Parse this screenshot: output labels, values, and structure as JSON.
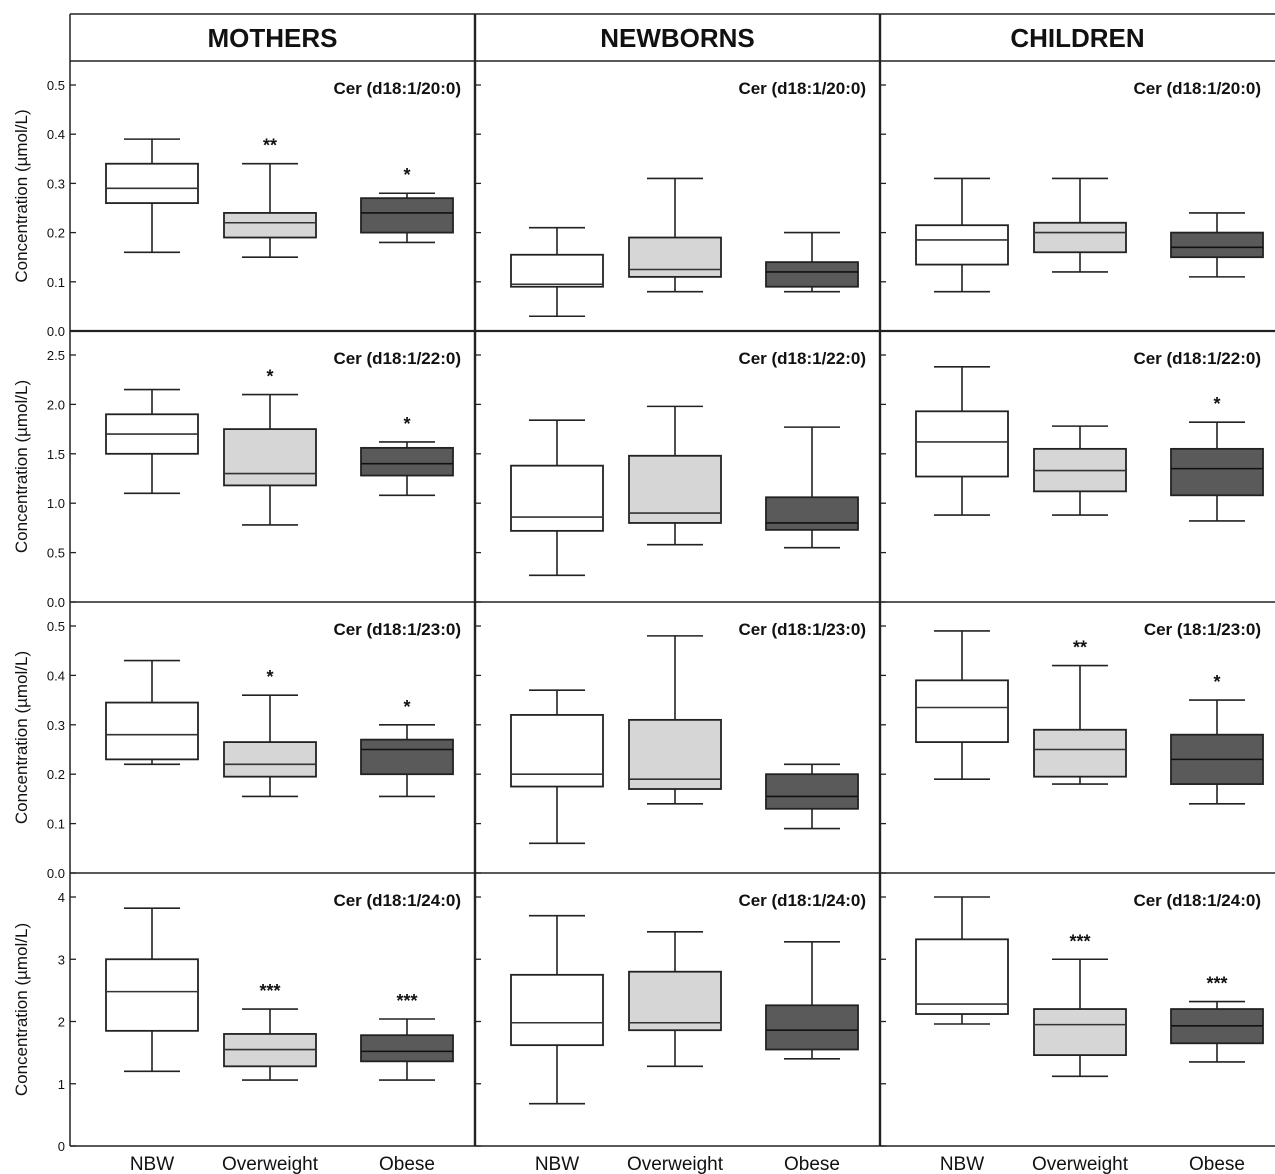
{
  "chart_data": {
    "type": "boxplot",
    "columns": [
      "MOTHERS",
      "NEWBORNS",
      "CHILDREN"
    ],
    "categories": [
      "NBW",
      "Overweight",
      "Obese"
    ],
    "ylabel": "Concentration (µmol/L)",
    "colors": {
      "NBW": "#ffffff",
      "Overweight": "#d6d6d6",
      "Obese": "#5a5a5a"
    },
    "rows": [
      {
        "ylim": [
          0,
          0.55
        ],
        "yticks": [
          "0.0",
          "0.1",
          "0.2",
          "0.3",
          "0.4",
          "0.5"
        ],
        "panels": [
          {
            "title": "Cer (d18:1/20:0)",
            "boxes": [
              {
                "min": 0.16,
                "q1": 0.26,
                "median": 0.29,
                "q3": 0.34,
                "max": 0.39,
                "sig": ""
              },
              {
                "min": 0.15,
                "q1": 0.19,
                "median": 0.22,
                "q3": 0.24,
                "max": 0.34,
                "sig": "**"
              },
              {
                "min": 0.18,
                "q1": 0.2,
                "median": 0.24,
                "q3": 0.27,
                "max": 0.28,
                "sig": "*"
              }
            ]
          },
          {
            "title": "Cer (d18:1/20:0)",
            "boxes": [
              {
                "min": 0.03,
                "q1": 0.09,
                "median": 0.095,
                "q3": 0.155,
                "max": 0.21,
                "sig": ""
              },
              {
                "min": 0.08,
                "q1": 0.11,
                "median": 0.125,
                "q3": 0.19,
                "max": 0.31,
                "sig": ""
              },
              {
                "min": 0.08,
                "q1": 0.09,
                "median": 0.12,
                "q3": 0.14,
                "max": 0.2,
                "sig": ""
              }
            ]
          },
          {
            "title": "Cer (d18:1/20:0)",
            "boxes": [
              {
                "min": 0.08,
                "q1": 0.135,
                "median": 0.185,
                "q3": 0.215,
                "max": 0.31,
                "sig": ""
              },
              {
                "min": 0.12,
                "q1": 0.16,
                "median": 0.2,
                "q3": 0.22,
                "max": 0.31,
                "sig": ""
              },
              {
                "min": 0.11,
                "q1": 0.15,
                "median": 0.17,
                "q3": 0.2,
                "max": 0.24,
                "sig": ""
              }
            ]
          }
        ]
      },
      {
        "ylim": [
          0,
          2.6
        ],
        "yticks": [
          "0.0",
          "0.5",
          "1.0",
          "1.5",
          "2.0",
          "2.5"
        ],
        "panels": [
          {
            "title": "Cer (d18:1/22:0)",
            "boxes": [
              {
                "min": 1.1,
                "q1": 1.5,
                "median": 1.7,
                "q3": 1.9,
                "max": 2.15,
                "sig": ""
              },
              {
                "min": 0.78,
                "q1": 1.18,
                "median": 1.3,
                "q3": 1.75,
                "max": 2.1,
                "sig": "*"
              },
              {
                "min": 1.08,
                "q1": 1.28,
                "median": 1.4,
                "q3": 1.56,
                "max": 1.62,
                "sig": "*"
              }
            ]
          },
          {
            "title": "Cer (d18:1/22:0)",
            "boxes": [
              {
                "min": 0.27,
                "q1": 0.72,
                "median": 0.86,
                "q3": 1.38,
                "max": 1.84,
                "sig": ""
              },
              {
                "min": 0.58,
                "q1": 0.8,
                "median": 0.9,
                "q3": 1.48,
                "max": 1.98,
                "sig": ""
              },
              {
                "min": 0.55,
                "q1": 0.73,
                "median": 0.8,
                "q3": 1.06,
                "max": 1.77,
                "sig": ""
              }
            ]
          },
          {
            "title": "Cer (d18:1/22:0)",
            "boxes": [
              {
                "min": 0.88,
                "q1": 1.27,
                "median": 1.62,
                "q3": 1.93,
                "max": 2.38,
                "sig": ""
              },
              {
                "min": 0.88,
                "q1": 1.12,
                "median": 1.33,
                "q3": 1.55,
                "max": 1.78,
                "sig": ""
              },
              {
                "min": 0.82,
                "q1": 1.08,
                "median": 1.35,
                "q3": 1.55,
                "max": 1.82,
                "sig": "*"
              }
            ]
          }
        ]
      },
      {
        "ylim": [
          0,
          0.5
        ],
        "yticks": [
          "0.0",
          "0.1",
          "0.2",
          "0.3",
          "0.4",
          "0.5"
        ],
        "panels": [
          {
            "title": "Cer (d18:1/23:0)",
            "boxes": [
              {
                "min": 0.22,
                "q1": 0.23,
                "median": 0.28,
                "q3": 0.345,
                "max": 0.43,
                "sig": ""
              },
              {
                "min": 0.155,
                "q1": 0.195,
                "median": 0.22,
                "q3": 0.265,
                "max": 0.36,
                "sig": "*"
              },
              {
                "min": 0.155,
                "q1": 0.2,
                "median": 0.25,
                "q3": 0.27,
                "max": 0.3,
                "sig": "*"
              }
            ]
          },
          {
            "title": "Cer (d18:1/23:0)",
            "boxes": [
              {
                "min": 0.06,
                "q1": 0.175,
                "median": 0.2,
                "q3": 0.32,
                "max": 0.37,
                "sig": ""
              },
              {
                "min": 0.14,
                "q1": 0.17,
                "median": 0.19,
                "q3": 0.31,
                "max": 0.48,
                "sig": ""
              },
              {
                "min": 0.09,
                "q1": 0.13,
                "median": 0.155,
                "q3": 0.2,
                "max": 0.22,
                "sig": ""
              }
            ]
          },
          {
            "title": "Cer (18:1/23:0)",
            "boxes": [
              {
                "min": 0.19,
                "q1": 0.265,
                "median": 0.335,
                "q3": 0.39,
                "max": 0.49,
                "sig": ""
              },
              {
                "min": 0.18,
                "q1": 0.195,
                "median": 0.25,
                "q3": 0.29,
                "max": 0.42,
                "sig": "**"
              },
              {
                "min": 0.14,
                "q1": 0.18,
                "median": 0.23,
                "q3": 0.28,
                "max": 0.35,
                "sig": "*"
              }
            ]
          }
        ]
      },
      {
        "ylim": [
          0,
          4.2
        ],
        "yticks": [
          "0",
          "1",
          "2",
          "3",
          "4"
        ],
        "panels": [
          {
            "title": "Cer (d18:1/24:0)",
            "boxes": [
              {
                "min": 1.2,
                "q1": 1.85,
                "median": 2.48,
                "q3": 3.0,
                "max": 3.82,
                "sig": ""
              },
              {
                "min": 1.06,
                "q1": 1.28,
                "median": 1.55,
                "q3": 1.8,
                "max": 2.2,
                "sig": "***"
              },
              {
                "min": 1.06,
                "q1": 1.36,
                "median": 1.52,
                "q3": 1.78,
                "max": 2.04,
                "sig": "***"
              }
            ]
          },
          {
            "title": "Cer (d18:1/24:0)",
            "boxes": [
              {
                "min": 0.68,
                "q1": 1.62,
                "median": 1.98,
                "q3": 2.75,
                "max": 3.7,
                "sig": ""
              },
              {
                "min": 1.28,
                "q1": 1.86,
                "median": 1.98,
                "q3": 2.8,
                "max": 3.44,
                "sig": ""
              },
              {
                "min": 1.4,
                "q1": 1.55,
                "median": 1.86,
                "q3": 2.26,
                "max": 3.28,
                "sig": ""
              }
            ]
          },
          {
            "title": "Cer (d18:1/24:0)",
            "boxes": [
              {
                "min": 1.96,
                "q1": 2.12,
                "median": 2.28,
                "q3": 3.32,
                "max": 4.0,
                "sig": ""
              },
              {
                "min": 1.12,
                "q1": 1.46,
                "median": 1.95,
                "q3": 2.2,
                "max": 3.0,
                "sig": "***"
              },
              {
                "min": 1.35,
                "q1": 1.65,
                "median": 1.93,
                "q3": 2.2,
                "max": 2.32,
                "sig": "***"
              }
            ]
          }
        ]
      }
    ]
  }
}
